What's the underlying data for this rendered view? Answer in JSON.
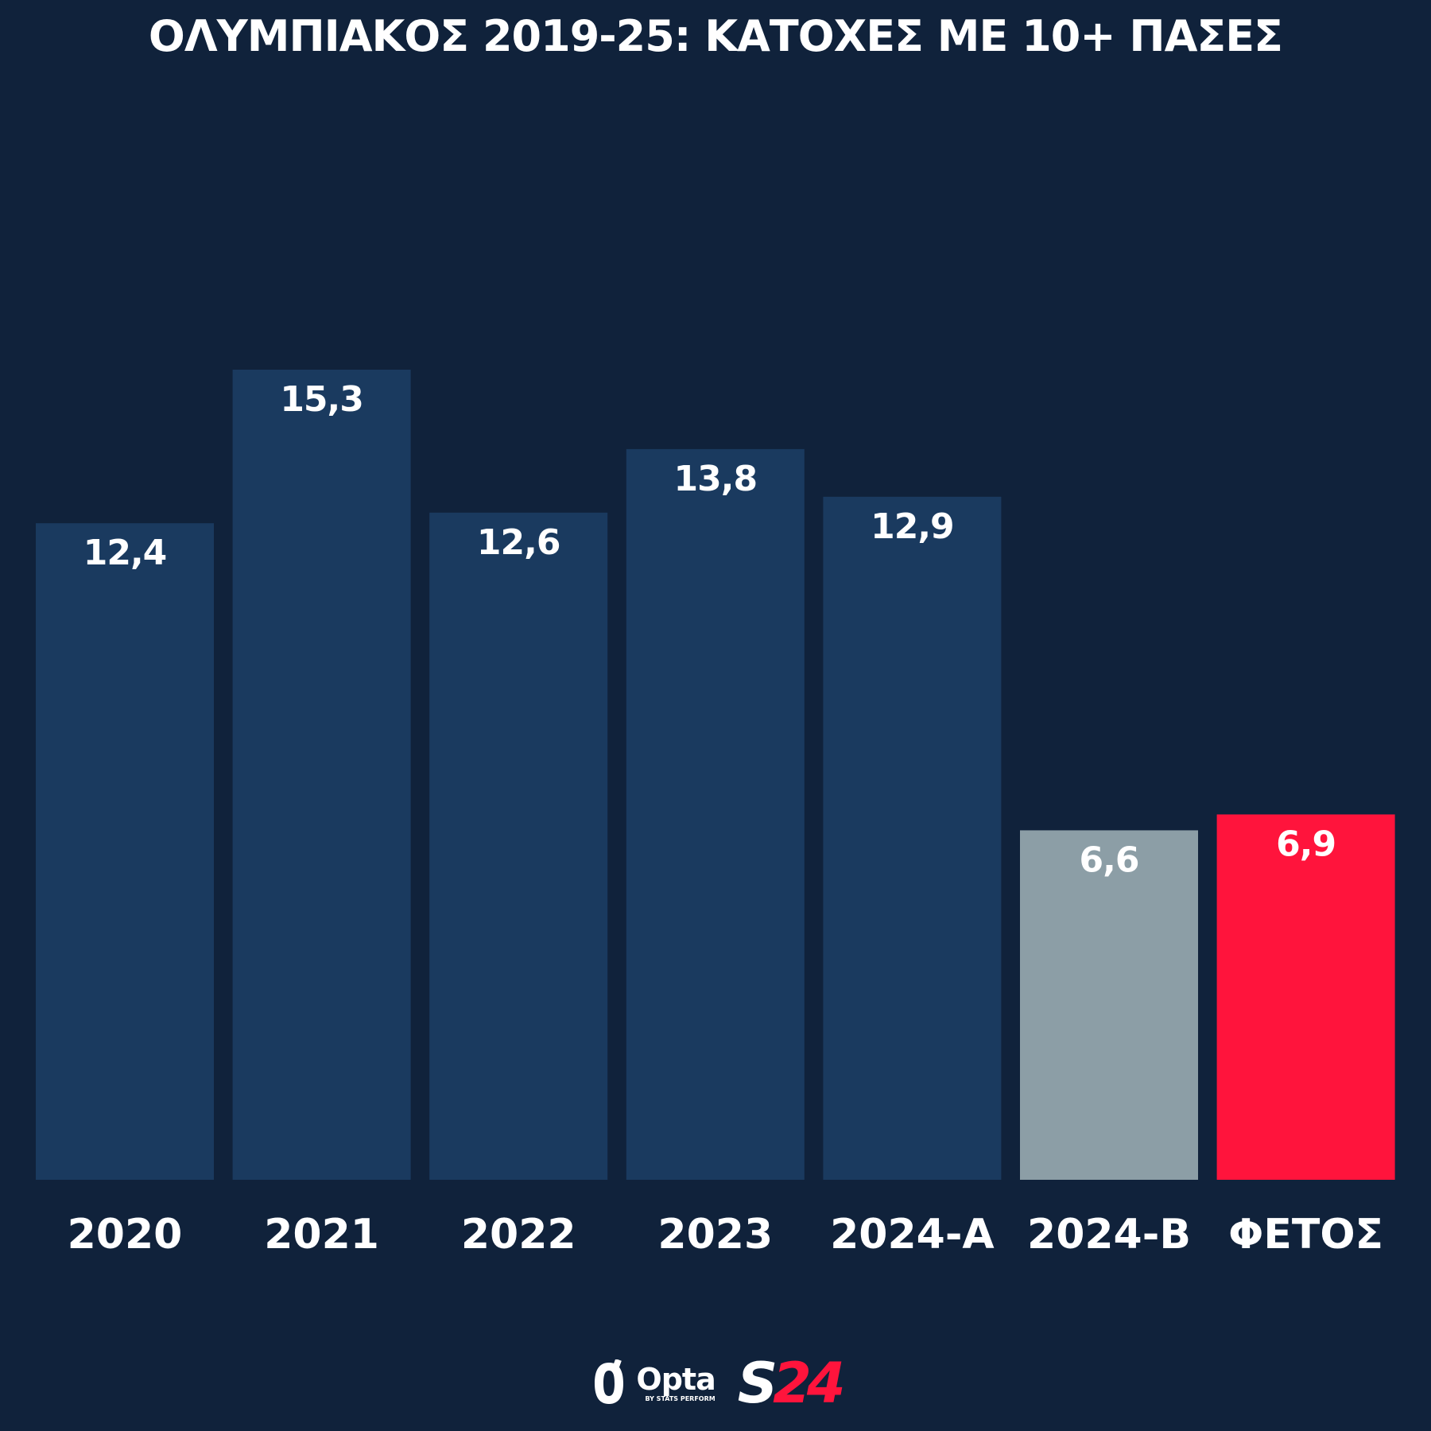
{
  "chart_data": {
    "type": "bar",
    "title": "ΟΛΥΜΠΙΑΚΟΣ 2019-25: ΚΑΤΟΧΕΣ ΜΕ 10+ ΠΑΣΕΣ",
    "categories": [
      "2020",
      "2021",
      "2022",
      "2023",
      "2024-A",
      "2024-B",
      "ΦΕΤΟΣ"
    ],
    "values": [
      12.4,
      15.3,
      12.6,
      13.8,
      12.9,
      6.6,
      6.9
    ],
    "value_labels": [
      "12,4",
      "15,3",
      "12,6",
      "13,8",
      "12,9",
      "6,6",
      "6,9"
    ],
    "bar_colors": [
      "#1a3a5f",
      "#1a3a5f",
      "#1a3a5f",
      "#1a3a5f",
      "#1a3a5f",
      "#8c9ea6",
      "#ff143c"
    ],
    "ylim": [
      0,
      15.3
    ],
    "grid": false,
    "xlabel": "",
    "ylabel": ""
  },
  "colors": {
    "background": "#10223b",
    "text": "#ffffff",
    "accent": "#ff143c"
  },
  "footer": {
    "opta_label": "Opta",
    "opta_sub": "BY STATS PERFORM",
    "s24_s": "S",
    "s24_num": "24"
  }
}
